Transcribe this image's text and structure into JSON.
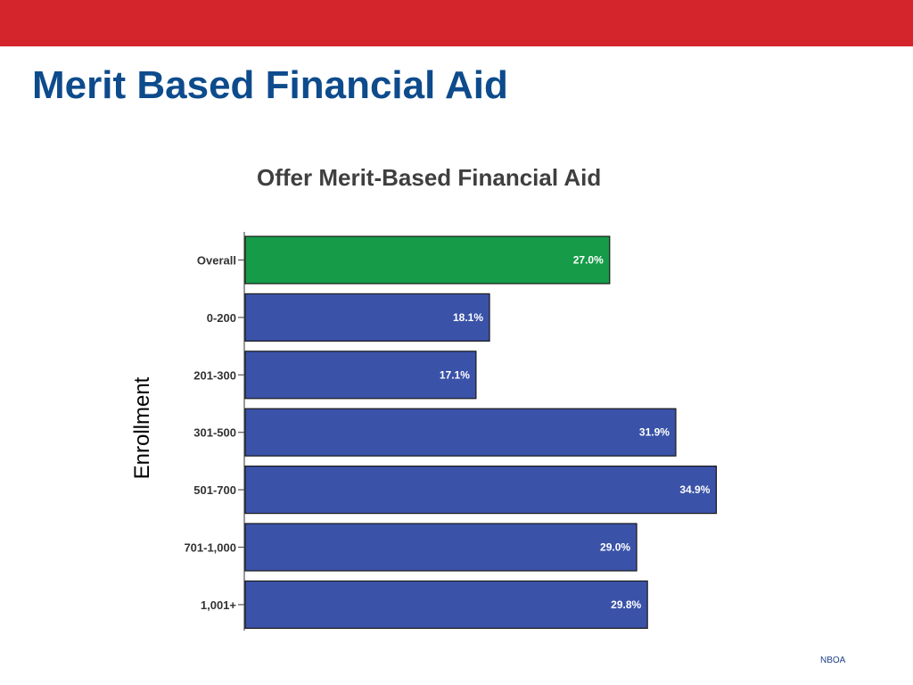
{
  "slide": {
    "title": "Merit Based Financial Aid",
    "footer": "NBOA"
  },
  "colors": {
    "top_bar": "#d4242c",
    "title_text": "#0d4b8c",
    "overall_bar": "#169b48",
    "enrollment_bar": "#3a52a8"
  },
  "chart_data": {
    "type": "bar",
    "orientation": "horizontal",
    "title": "Offer Merit-Based Financial Aid",
    "ylabel": "Enrollment",
    "xlabel": "",
    "categories": [
      "Overall",
      "0-200",
      "201-300",
      "301-500",
      "501-700",
      "701-1,000",
      "1,001+"
    ],
    "values": [
      27.0,
      18.1,
      17.1,
      31.9,
      34.9,
      29.0,
      29.8
    ],
    "data_labels": [
      "27.0%",
      "18.1%",
      "17.1%",
      "31.9%",
      "34.9%",
      "29.0%",
      "29.8%"
    ],
    "xlim": [
      0,
      50
    ],
    "grid": false,
    "legend": "none"
  }
}
